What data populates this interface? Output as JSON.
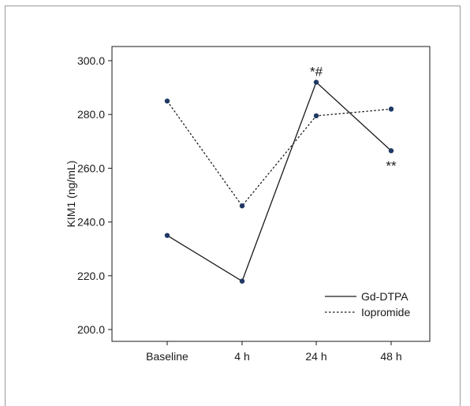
{
  "chart_data": {
    "type": "line",
    "categories": [
      "Baseline",
      "4 h",
      "24 h",
      "48 h"
    ],
    "series": [
      {
        "name": "Gd-DTPA",
        "values": [
          235.0,
          218.0,
          292.0,
          266.5
        ],
        "style": "solid",
        "color": "#1a1a1a"
      },
      {
        "name": "Iopromide",
        "values": [
          285.0,
          246.0,
          279.5,
          282.0
        ],
        "style": "dotted",
        "color": "#1a1a1a"
      }
    ],
    "marker_color": "#1f3864",
    "ylabel": "KIM1 (ng/mL)",
    "ylim": [
      200,
      300
    ],
    "yticks": [
      200,
      220,
      240,
      260,
      280,
      300
    ],
    "ytick_labels": [
      "200.0",
      "220.0",
      "240.0",
      "260.0",
      "280.0",
      "300.0"
    ],
    "annotations": [
      {
        "text": "*#",
        "category": "24 h",
        "value": 292.0,
        "position": "above"
      },
      {
        "text": "**",
        "category": "48 h",
        "value": 266.5,
        "position": "below"
      }
    ],
    "legend_position": "bottom-right",
    "grid": false
  }
}
